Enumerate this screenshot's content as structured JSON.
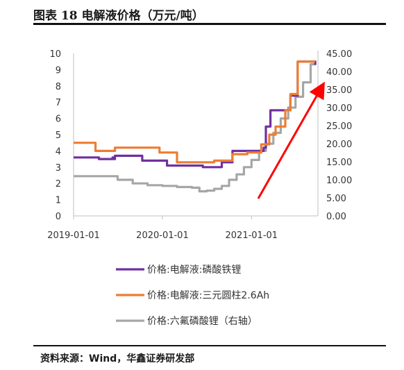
{
  "title": "图表 18 电解液价格（万元/吨）",
  "source": "资料来源：Wind，华鑫证券研发部",
  "chart_data": {
    "type": "line",
    "left_axis": {
      "ylim": [
        0,
        10
      ],
      "ticks": [
        "0",
        "1",
        "2",
        "3",
        "4",
        "5",
        "6",
        "7",
        "8",
        "9",
        "10"
      ]
    },
    "right_axis": {
      "ylim": [
        0,
        45
      ],
      "ticks": [
        "0.00",
        "5.00",
        "10.00",
        "15.00",
        "20.00",
        "25.00",
        "30.00",
        "35.00",
        "40.00",
        "45.00"
      ]
    },
    "x_ticks": [
      {
        "date": "2019-01-01",
        "label": "2019-01-01"
      },
      {
        "date": "2020-01-01",
        "label": "2020-01-01"
      },
      {
        "date": "2021-01-01",
        "label": "2021-01-01"
      }
    ],
    "xlim": [
      "2019-01-01",
      "2021-10-01"
    ],
    "series": [
      {
        "name": "价格:电解液:磷酸铁锂",
        "axis": "left",
        "color": "#7030a0",
        "points": [
          [
            "2019-01-01",
            3.6
          ],
          [
            "2019-04-15",
            3.5
          ],
          [
            "2019-06-10",
            3.6
          ],
          [
            "2019-06-15",
            3.5
          ],
          [
            "2019-06-20",
            3.7
          ],
          [
            "2019-10-10",
            3.4
          ],
          [
            "2020-01-20",
            3.1
          ],
          [
            "2020-06-15",
            3.0
          ],
          [
            "2020-09-01",
            3.3
          ],
          [
            "2020-10-10",
            3.3
          ],
          [
            "2020-10-15",
            4.0
          ],
          [
            "2020-11-10",
            4.0
          ],
          [
            "2021-01-15",
            4.0
          ],
          [
            "2021-02-20",
            4.2
          ],
          [
            "2021-03-01",
            5.5
          ],
          [
            "2021-03-20",
            6.5
          ],
          [
            "2021-06-10",
            7.4
          ],
          [
            "2021-07-10",
            9.5
          ],
          [
            "2021-09-10",
            9.5
          ],
          [
            "2021-09-15",
            9.5
          ],
          [
            "2021-09-20",
            9.3
          ]
        ]
      },
      {
        "name": "价格:电解液:三元圆柱2.6Ah",
        "axis": "left",
        "color": "#ed7d31",
        "points": [
          [
            "2019-01-01",
            4.5
          ],
          [
            "2019-04-01",
            4.0
          ],
          [
            "2019-06-20",
            4.2
          ],
          [
            "2019-12-20",
            3.9
          ],
          [
            "2020-03-01",
            3.3
          ],
          [
            "2020-08-01",
            3.4
          ],
          [
            "2020-10-15",
            3.8
          ],
          [
            "2020-12-15",
            3.9
          ],
          [
            "2021-02-10",
            4.4
          ],
          [
            "2021-03-15",
            5.0
          ],
          [
            "2021-04-10",
            5.5
          ],
          [
            "2021-05-20",
            6.5
          ],
          [
            "2021-06-10",
            7.5
          ],
          [
            "2021-07-10",
            9.5
          ],
          [
            "2021-09-20",
            9.5
          ]
        ]
      },
      {
        "name": "价格:六氟磷酸锂（右轴）",
        "axis": "right",
        "color": "#a6a6a6",
        "points": [
          [
            "2019-01-01",
            11.0
          ],
          [
            "2019-04-01",
            11.0
          ],
          [
            "2019-07-01",
            10.0
          ],
          [
            "2019-09-01",
            9.0
          ],
          [
            "2019-11-01",
            8.5
          ],
          [
            "2020-01-01",
            8.3
          ],
          [
            "2020-03-01",
            8.0
          ],
          [
            "2020-05-01",
            7.8
          ],
          [
            "2020-06-01",
            6.8
          ],
          [
            "2020-07-01",
            7.0
          ],
          [
            "2020-08-01",
            7.5
          ],
          [
            "2020-09-01",
            8.3
          ],
          [
            "2020-10-01",
            10.0
          ],
          [
            "2020-11-01",
            11.5
          ],
          [
            "2020-12-01",
            13.5
          ],
          [
            "2021-01-01",
            15.5
          ],
          [
            "2021-02-01",
            18.0
          ],
          [
            "2021-03-01",
            20.0
          ],
          [
            "2021-04-01",
            23.0
          ],
          [
            "2021-05-01",
            27.0
          ],
          [
            "2021-06-01",
            30.0
          ],
          [
            "2021-07-01",
            33.0
          ],
          [
            "2021-08-01",
            37.0
          ],
          [
            "2021-09-01",
            42.0
          ],
          [
            "2021-09-20",
            43.0
          ]
        ]
      }
    ],
    "legend": [
      {
        "label": "价格:电解液:磷酸铁锂",
        "color": "#7030a0"
      },
      {
        "label": "价格:电解液:三元圆柱2.6Ah",
        "color": "#ed7d31"
      },
      {
        "label": "价格:六氟磷酸锂（右轴）",
        "color": "#a6a6a6"
      }
    ],
    "legend_position": "bottom",
    "grid": false,
    "annotation": {
      "type": "arrow",
      "color": "#ff0000"
    }
  }
}
